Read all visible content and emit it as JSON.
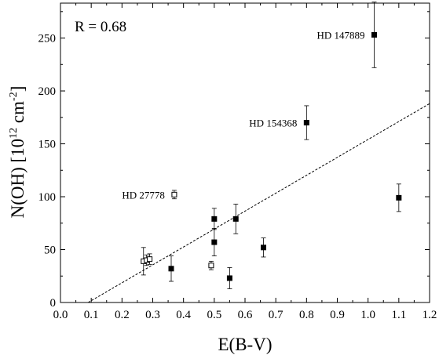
{
  "chart_data": {
    "type": "scatter",
    "xlabel": "E(B-V)",
    "ylabel_parts": {
      "base": "N(OH) [10",
      "exp1": "12",
      "mid": " cm",
      "exp2": "-2",
      "end": "]"
    },
    "xlim": [
      0.0,
      1.2
    ],
    "ylim": [
      0,
      283
    ],
    "xticks": [
      "0.0",
      "0.1",
      "0.2",
      "0.3",
      "0.4",
      "0.5",
      "0.6",
      "0.7",
      "0.8",
      "0.9",
      "1.0",
      "1.1",
      "1.2"
    ],
    "yticks": [
      "0",
      "50",
      "100",
      "150",
      "200",
      "250"
    ],
    "grid": false,
    "annotation_r": "R = 0.68",
    "series": [
      {
        "marker": "filled-square",
        "points": [
          {
            "x": 0.36,
            "y": 32,
            "err": 12
          },
          {
            "x": 0.5,
            "y": 79,
            "err": 10
          },
          {
            "x": 0.5,
            "y": 57,
            "err": 13
          },
          {
            "x": 0.55,
            "y": 23,
            "err": 10
          },
          {
            "x": 0.57,
            "y": 79,
            "err": 14
          },
          {
            "x": 0.66,
            "y": 52,
            "err": 9
          },
          {
            "x": 0.8,
            "y": 170,
            "err": 16,
            "label": "HD 154368"
          },
          {
            "x": 1.02,
            "y": 253,
            "err": 31,
            "label": "HD 147889"
          },
          {
            "x": 1.1,
            "y": 99,
            "err": 13
          }
        ]
      },
      {
        "marker": "open-square",
        "points": [
          {
            "x": 0.27,
            "y": 39,
            "err": 13
          },
          {
            "x": 0.28,
            "y": 40,
            "err": 5
          },
          {
            "x": 0.29,
            "y": 41,
            "err": 5
          },
          {
            "x": 0.37,
            "y": 102,
            "err": 4,
            "label": "HD 27778"
          },
          {
            "x": 0.49,
            "y": 35,
            "err": 4
          }
        ]
      }
    ],
    "fit_line": {
      "style": "dashed",
      "points": [
        [
          0.09,
          0
        ],
        [
          1.2,
          188
        ]
      ]
    }
  }
}
